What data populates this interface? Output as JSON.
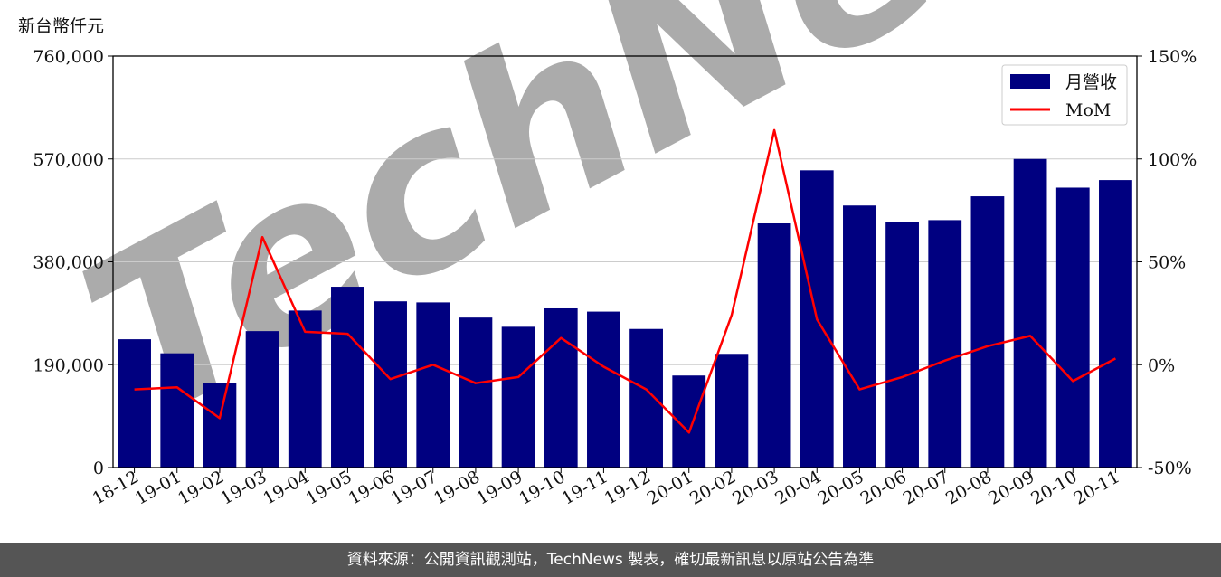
{
  "unit_label": "新台幣仟元",
  "watermark": "TechNews",
  "footer": "資料來源：公開資訊觀測站，TechNews 製表，確切最新訊息以原站公告為準",
  "colors": {
    "bar": "#000080",
    "line": "#ff0000",
    "grid": "#cccccc",
    "footer_bg": "#555555"
  },
  "chart_data": {
    "type": "bar",
    "categories": [
      "18-12",
      "19-01",
      "19-02",
      "19-03",
      "19-04",
      "19-05",
      "19-06",
      "19-07",
      "19-08",
      "19-09",
      "19-10",
      "19-11",
      "19-12",
      "20-01",
      "20-02",
      "20-03",
      "20-04",
      "20-05",
      "20-06",
      "20-07",
      "20-08",
      "20-09",
      "20-10",
      "20-11"
    ],
    "series": [
      {
        "name": "月營收",
        "type": "bar",
        "axis": "left",
        "values": [
          237000,
          211000,
          156000,
          252000,
          290000,
          334000,
          307000,
          305000,
          277000,
          260000,
          294000,
          288000,
          256000,
          170000,
          210000,
          451000,
          549000,
          484000,
          453000,
          457000,
          501000,
          570000,
          517000,
          531000
        ]
      },
      {
        "name": "MoM",
        "type": "line",
        "axis": "right",
        "values": [
          -12,
          -11,
          -26,
          62,
          16,
          15,
          -7,
          0,
          -9,
          -6,
          13,
          -1,
          -12,
          -33,
          24,
          114,
          22,
          -12,
          -6,
          2,
          9,
          14,
          -8,
          3
        ]
      }
    ],
    "y_left": {
      "min": 0,
      "max": 760000,
      "ticks": [
        "0",
        "190,000",
        "380,000",
        "570,000",
        "760,000"
      ]
    },
    "y_right": {
      "min": -50,
      "max": 150,
      "ticks": [
        "-50%",
        "0%",
        "50%",
        "100%",
        "150%"
      ]
    },
    "grid": true,
    "legend_position": "top-right"
  }
}
